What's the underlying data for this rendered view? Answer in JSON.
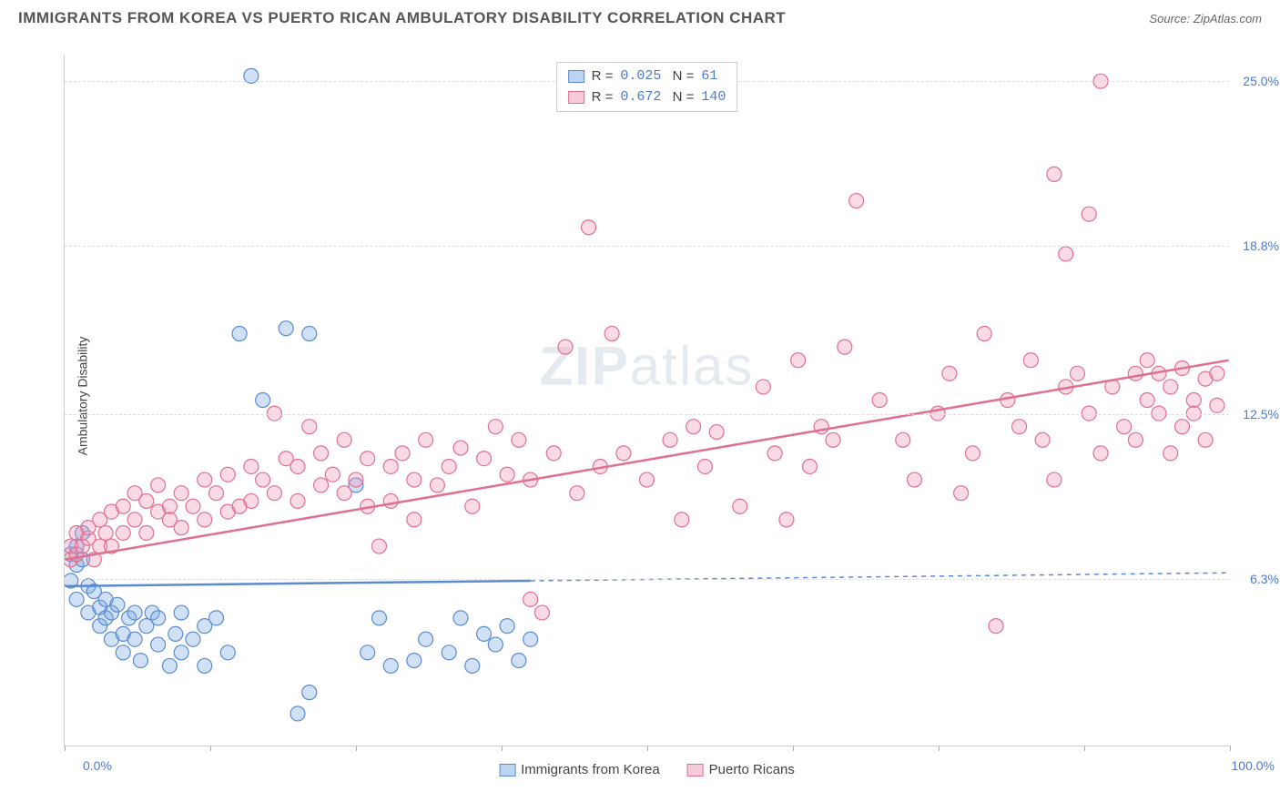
{
  "title": "IMMIGRANTS FROM KOREA VS PUERTO RICAN AMBULATORY DISABILITY CORRELATION CHART",
  "source": "Source: ZipAtlas.com",
  "watermark_a": "ZIP",
  "watermark_b": "atlas",
  "chart": {
    "type": "scatter",
    "ylabel": "Ambulatory Disability",
    "xlim": [
      0,
      100
    ],
    "ylim": [
      0,
      26
    ],
    "yticks": [
      {
        "v": 6.3,
        "label": "6.3%"
      },
      {
        "v": 12.5,
        "label": "12.5%"
      },
      {
        "v": 18.8,
        "label": "18.8%"
      },
      {
        "v": 25.0,
        "label": "25.0%"
      }
    ],
    "xtick_positions": [
      0,
      12.5,
      25,
      37.5,
      50,
      62.5,
      75,
      87.5,
      100
    ],
    "xtick_left": "0.0%",
    "xtick_right": "100.0%",
    "background_color": "#ffffff",
    "grid_color": "#dddddd",
    "marker_radius": 8,
    "marker_opacity": 0.35,
    "line_width": 2.5,
    "series": [
      {
        "name": "Immigrants from Korea",
        "color": "#5a8bd0",
        "fill": "rgba(120,170,230,0.35)",
        "R": "0.025",
        "N": "61",
        "trend": {
          "x1": 0,
          "y1": 6.0,
          "x2": 100,
          "y2": 6.5,
          "solid_until": 40
        },
        "points": [
          [
            0.5,
            7.2
          ],
          [
            1,
            6.8
          ],
          [
            1,
            7.5
          ],
          [
            1.5,
            8.0
          ],
          [
            1.5,
            7.0
          ],
          [
            0.5,
            6.2
          ],
          [
            1,
            5.5
          ],
          [
            2,
            5.0
          ],
          [
            2,
            6.0
          ],
          [
            2.5,
            5.8
          ],
          [
            3,
            4.5
          ],
          [
            3,
            5.2
          ],
          [
            3.5,
            5.5
          ],
          [
            3.5,
            4.8
          ],
          [
            4,
            4.0
          ],
          [
            4,
            5.0
          ],
          [
            4.5,
            5.3
          ],
          [
            5,
            4.2
          ],
          [
            5,
            3.5
          ],
          [
            5.5,
            4.8
          ],
          [
            6,
            4.0
          ],
          [
            6,
            5.0
          ],
          [
            6.5,
            3.2
          ],
          [
            7,
            4.5
          ],
          [
            7.5,
            5.0
          ],
          [
            8,
            3.8
          ],
          [
            8,
            4.8
          ],
          [
            9,
            3.0
          ],
          [
            9.5,
            4.2
          ],
          [
            10,
            5.0
          ],
          [
            10,
            3.5
          ],
          [
            11,
            4.0
          ],
          [
            12,
            4.5
          ],
          [
            12,
            3.0
          ],
          [
            13,
            4.8
          ],
          [
            14,
            3.5
          ],
          [
            15,
            15.5
          ],
          [
            16,
            25.2
          ],
          [
            17,
            13.0
          ],
          [
            19,
            15.7
          ],
          [
            20,
            1.2
          ],
          [
            21,
            2.0
          ],
          [
            21,
            15.5
          ],
          [
            25,
            9.8
          ],
          [
            26,
            3.5
          ],
          [
            27,
            4.8
          ],
          [
            28,
            3.0
          ],
          [
            30,
            3.2
          ],
          [
            31,
            4.0
          ],
          [
            33,
            3.5
          ],
          [
            34,
            4.8
          ],
          [
            35,
            3.0
          ],
          [
            36,
            4.2
          ],
          [
            37,
            3.8
          ],
          [
            38,
            4.5
          ],
          [
            39,
            3.2
          ],
          [
            40,
            4.0
          ]
        ]
      },
      {
        "name": "Puerto Ricans",
        "color": "#e07090",
        "fill": "rgba(240,150,180,0.35)",
        "R": "0.672",
        "N": "140",
        "trend": {
          "x1": 0,
          "y1": 7.0,
          "x2": 100,
          "y2": 14.5,
          "solid_until": 100
        },
        "points": [
          [
            0.5,
            7.0
          ],
          [
            0.5,
            7.5
          ],
          [
            1,
            7.2
          ],
          [
            1,
            8.0
          ],
          [
            1.5,
            7.5
          ],
          [
            2,
            7.8
          ],
          [
            2,
            8.2
          ],
          [
            2.5,
            7.0
          ],
          [
            3,
            8.5
          ],
          [
            3,
            7.5
          ],
          [
            3.5,
            8.0
          ],
          [
            4,
            8.8
          ],
          [
            4,
            7.5
          ],
          [
            5,
            9.0
          ],
          [
            5,
            8.0
          ],
          [
            6,
            8.5
          ],
          [
            6,
            9.5
          ],
          [
            7,
            8.0
          ],
          [
            7,
            9.2
          ],
          [
            8,
            8.8
          ],
          [
            8,
            9.8
          ],
          [
            9,
            9.0
          ],
          [
            9,
            8.5
          ],
          [
            10,
            9.5
          ],
          [
            10,
            8.2
          ],
          [
            11,
            9.0
          ],
          [
            12,
            10.0
          ],
          [
            12,
            8.5
          ],
          [
            13,
            9.5
          ],
          [
            14,
            8.8
          ],
          [
            14,
            10.2
          ],
          [
            15,
            9.0
          ],
          [
            16,
            10.5
          ],
          [
            16,
            9.2
          ],
          [
            17,
            10.0
          ],
          [
            18,
            9.5
          ],
          [
            18,
            12.5
          ],
          [
            19,
            10.8
          ],
          [
            20,
            9.2
          ],
          [
            20,
            10.5
          ],
          [
            21,
            12.0
          ],
          [
            22,
            9.8
          ],
          [
            22,
            11.0
          ],
          [
            23,
            10.2
          ],
          [
            24,
            9.5
          ],
          [
            24,
            11.5
          ],
          [
            25,
            10.0
          ],
          [
            26,
            9.0
          ],
          [
            26,
            10.8
          ],
          [
            27,
            7.5
          ],
          [
            28,
            10.5
          ],
          [
            28,
            9.2
          ],
          [
            29,
            11.0
          ],
          [
            30,
            10.0
          ],
          [
            30,
            8.5
          ],
          [
            31,
            11.5
          ],
          [
            32,
            9.8
          ],
          [
            33,
            10.5
          ],
          [
            34,
            11.2
          ],
          [
            35,
            9.0
          ],
          [
            36,
            10.8
          ],
          [
            37,
            12.0
          ],
          [
            38,
            10.2
          ],
          [
            39,
            11.5
          ],
          [
            40,
            5.5
          ],
          [
            40,
            10.0
          ],
          [
            41,
            5.0
          ],
          [
            42,
            11.0
          ],
          [
            43,
            15.0
          ],
          [
            44,
            9.5
          ],
          [
            45,
            19.5
          ],
          [
            46,
            10.5
          ],
          [
            47,
            15.5
          ],
          [
            48,
            11.0
          ],
          [
            50,
            10.0
          ],
          [
            52,
            11.5
          ],
          [
            53,
            8.5
          ],
          [
            54,
            12.0
          ],
          [
            55,
            10.5
          ],
          [
            56,
            11.8
          ],
          [
            58,
            9.0
          ],
          [
            60,
            13.5
          ],
          [
            61,
            11.0
          ],
          [
            62,
            8.5
          ],
          [
            63,
            14.5
          ],
          [
            64,
            10.5
          ],
          [
            65,
            12.0
          ],
          [
            66,
            11.5
          ],
          [
            67,
            15.0
          ],
          [
            68,
            20.5
          ],
          [
            70,
            13.0
          ],
          [
            72,
            11.5
          ],
          [
            73,
            10.0
          ],
          [
            75,
            12.5
          ],
          [
            76,
            14.0
          ],
          [
            77,
            9.5
          ],
          [
            78,
            11.0
          ],
          [
            79,
            15.5
          ],
          [
            80,
            4.5
          ],
          [
            81,
            13.0
          ],
          [
            82,
            12.0
          ],
          [
            83,
            14.5
          ],
          [
            84,
            11.5
          ],
          [
            85,
            21.5
          ],
          [
            85,
            10.0
          ],
          [
            86,
            18.5
          ],
          [
            86,
            13.5
          ],
          [
            87,
            14.0
          ],
          [
            88,
            20.0
          ],
          [
            88,
            12.5
          ],
          [
            89,
            11.0
          ],
          [
            89,
            25.0
          ],
          [
            90,
            13.5
          ],
          [
            91,
            12.0
          ],
          [
            92,
            14.0
          ],
          [
            92,
            11.5
          ],
          [
            93,
            13.0
          ],
          [
            93,
            14.5
          ],
          [
            94,
            12.5
          ],
          [
            94,
            14.0
          ],
          [
            95,
            13.5
          ],
          [
            95,
            11.0
          ],
          [
            96,
            12.0
          ],
          [
            96,
            14.2
          ],
          [
            97,
            13.0
          ],
          [
            97,
            12.5
          ],
          [
            98,
            13.8
          ],
          [
            98,
            11.5
          ],
          [
            99,
            12.8
          ],
          [
            99,
            14.0
          ]
        ]
      }
    ]
  },
  "legend_bottom": [
    {
      "label": "Immigrants from Korea",
      "swatch": "blue"
    },
    {
      "label": "Puerto Ricans",
      "swatch": "pink"
    }
  ]
}
